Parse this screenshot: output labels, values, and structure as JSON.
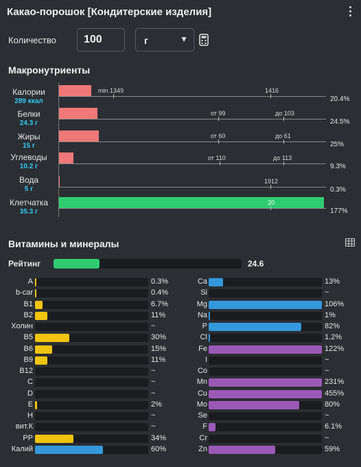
{
  "header": {
    "title": "Какао-порошок [Кондитерские изделия]"
  },
  "quantity": {
    "label": "Количество",
    "value": "100",
    "unit": "г"
  },
  "macros": {
    "title": "Макронутриенты",
    "rows": [
      {
        "name": "Калории",
        "value": "289 ккал",
        "percent": "20.4%",
        "fill": 0.204,
        "color": "#f07878",
        "marks": [
          "min 1349",
          "1416"
        ]
      },
      {
        "name": "Белки",
        "value": "24.3 г",
        "percent": "24.5%",
        "fill": 0.245,
        "color": "#f07878",
        "marks": [
          "от 99",
          "до 103"
        ]
      },
      {
        "name": "Жиры",
        "value": "15 г",
        "percent": "25%",
        "fill": 0.25,
        "color": "#f07878",
        "marks": [
          "от 60",
          "до 61"
        ]
      },
      {
        "name": "Углеводы",
        "value": "10.2 г",
        "percent": "9.3%",
        "fill": 0.093,
        "color": "#f07878",
        "marks": [
          "от 110",
          "до 113"
        ]
      },
      {
        "name": "Вода",
        "value": "5 г",
        "percent": "0.3%",
        "fill": 0.003,
        "color": "#f07878",
        "marks": [
          "",
          "1912"
        ]
      },
      {
        "name": "Клетчатка",
        "value": "35.3 г",
        "percent": "177%",
        "fill": 1.77,
        "color": "#2ecc71",
        "marks": [
          "",
          "20"
        ]
      }
    ]
  },
  "vitamins": {
    "title": "Витамины и минералы",
    "rating": {
      "label": "Рейтинг",
      "value": "24.6",
      "fill": 0.246
    },
    "left": [
      {
        "name": "A",
        "value": "0.3%",
        "fill": 0.003,
        "color": "#f1c40f"
      },
      {
        "name": "b-car",
        "value": "0.4%",
        "fill": 0.004,
        "color": "#f1c40f"
      },
      {
        "name": "B1",
        "value": "6.7%",
        "fill": 0.067,
        "color": "#f1c40f"
      },
      {
        "name": "B2",
        "value": "11%",
        "fill": 0.11,
        "color": "#f1c40f"
      },
      {
        "name": "Холин",
        "value": "~",
        "fill": 0,
        "color": "#f1c40f"
      },
      {
        "name": "B5",
        "value": "30%",
        "fill": 0.3,
        "color": "#f1c40f"
      },
      {
        "name": "B6",
        "value": "15%",
        "fill": 0.15,
        "color": "#f1c40f"
      },
      {
        "name": "B9",
        "value": "11%",
        "fill": 0.11,
        "color": "#f1c40f"
      },
      {
        "name": "B12",
        "value": "~",
        "fill": 0,
        "color": "#f1c40f"
      },
      {
        "name": "C",
        "value": "~",
        "fill": 0,
        "color": "#f1c40f"
      },
      {
        "name": "D",
        "value": "~",
        "fill": 0,
        "color": "#f1c40f"
      },
      {
        "name": "E",
        "value": "2%",
        "fill": 0.02,
        "color": "#f1c40f"
      },
      {
        "name": "H",
        "value": "~",
        "fill": 0,
        "color": "#f1c40f"
      },
      {
        "name": "вит.К",
        "value": "~",
        "fill": 0,
        "color": "#f1c40f"
      },
      {
        "name": "PP",
        "value": "34%",
        "fill": 0.34,
        "color": "#f1c40f"
      },
      {
        "name": "Калий",
        "value": "60%",
        "fill": 0.6,
        "color": "#3498db"
      }
    ],
    "right": [
      {
        "name": "Ca",
        "value": "13%",
        "fill": 0.13,
        "color": "#3498db"
      },
      {
        "name": "Si",
        "value": "~",
        "fill": 0,
        "color": "#3498db"
      },
      {
        "name": "Mg",
        "value": "106%",
        "fill": 1.06,
        "color": "#3498db"
      },
      {
        "name": "Na",
        "value": "1%",
        "fill": 0.01,
        "color": "#3498db"
      },
      {
        "name": "P",
        "value": "82%",
        "fill": 0.82,
        "color": "#3498db"
      },
      {
        "name": "Cl",
        "value": "1.2%",
        "fill": 0.012,
        "color": "#3498db"
      },
      {
        "name": "Fe",
        "value": "122%",
        "fill": 1.22,
        "color": "#9b59b6"
      },
      {
        "name": "I",
        "value": "~",
        "fill": 0,
        "color": "#9b59b6"
      },
      {
        "name": "Co",
        "value": "~",
        "fill": 0,
        "color": "#9b59b6"
      },
      {
        "name": "Mn",
        "value": "231%",
        "fill": 2.31,
        "color": "#9b59b6"
      },
      {
        "name": "Cu",
        "value": "455%",
        "fill": 4.55,
        "color": "#9b59b6"
      },
      {
        "name": "Mo",
        "value": "80%",
        "fill": 0.8,
        "color": "#9b59b6"
      },
      {
        "name": "Se",
        "value": "~",
        "fill": 0,
        "color": "#9b59b6"
      },
      {
        "name": "F",
        "value": "6.1%",
        "fill": 0.061,
        "color": "#9b59b6"
      },
      {
        "name": "Cr",
        "value": "~",
        "fill": 0,
        "color": "#9b59b6"
      },
      {
        "name": "Zn",
        "value": "59%",
        "fill": 0.59,
        "color": "#9b59b6"
      }
    ]
  }
}
